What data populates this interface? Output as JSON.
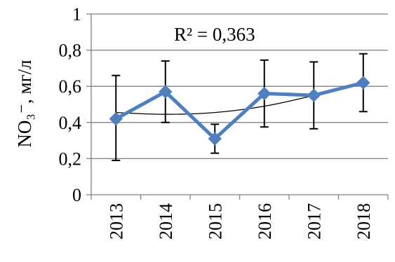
{
  "chart_data": {
    "type": "line",
    "title": "",
    "x": [
      "2013",
      "2014",
      "2015",
      "2016",
      "2017",
      "2018"
    ],
    "series": [
      {
        "values": [
          0.42,
          0.57,
          0.31,
          0.56,
          0.55,
          0.62
        ],
        "error_high": [
          0.66,
          0.74,
          0.39,
          0.745,
          0.735,
          0.78
        ],
        "error_low": [
          0.19,
          0.4,
          0.23,
          0.375,
          0.365,
          0.46
        ],
        "color": "#4f7fbf",
        "marker": "diamond"
      }
    ],
    "trendline": {
      "type": "polynomial",
      "values": [
        0.455,
        0.445,
        0.455,
        0.49,
        0.55,
        0.625
      ],
      "color": "#000000"
    },
    "annotation": "R² = 0,363",
    "ylabel": "NO₃⁻, мг/л",
    "ylim": [
      0,
      1
    ],
    "yticks": [
      0,
      0.2,
      0.4,
      0.6,
      0.8,
      1
    ],
    "ytick_labels": [
      "0",
      "0,2",
      "0,4",
      "0,6",
      "0,8",
      "1"
    ],
    "grid": true,
    "legend": "none"
  }
}
